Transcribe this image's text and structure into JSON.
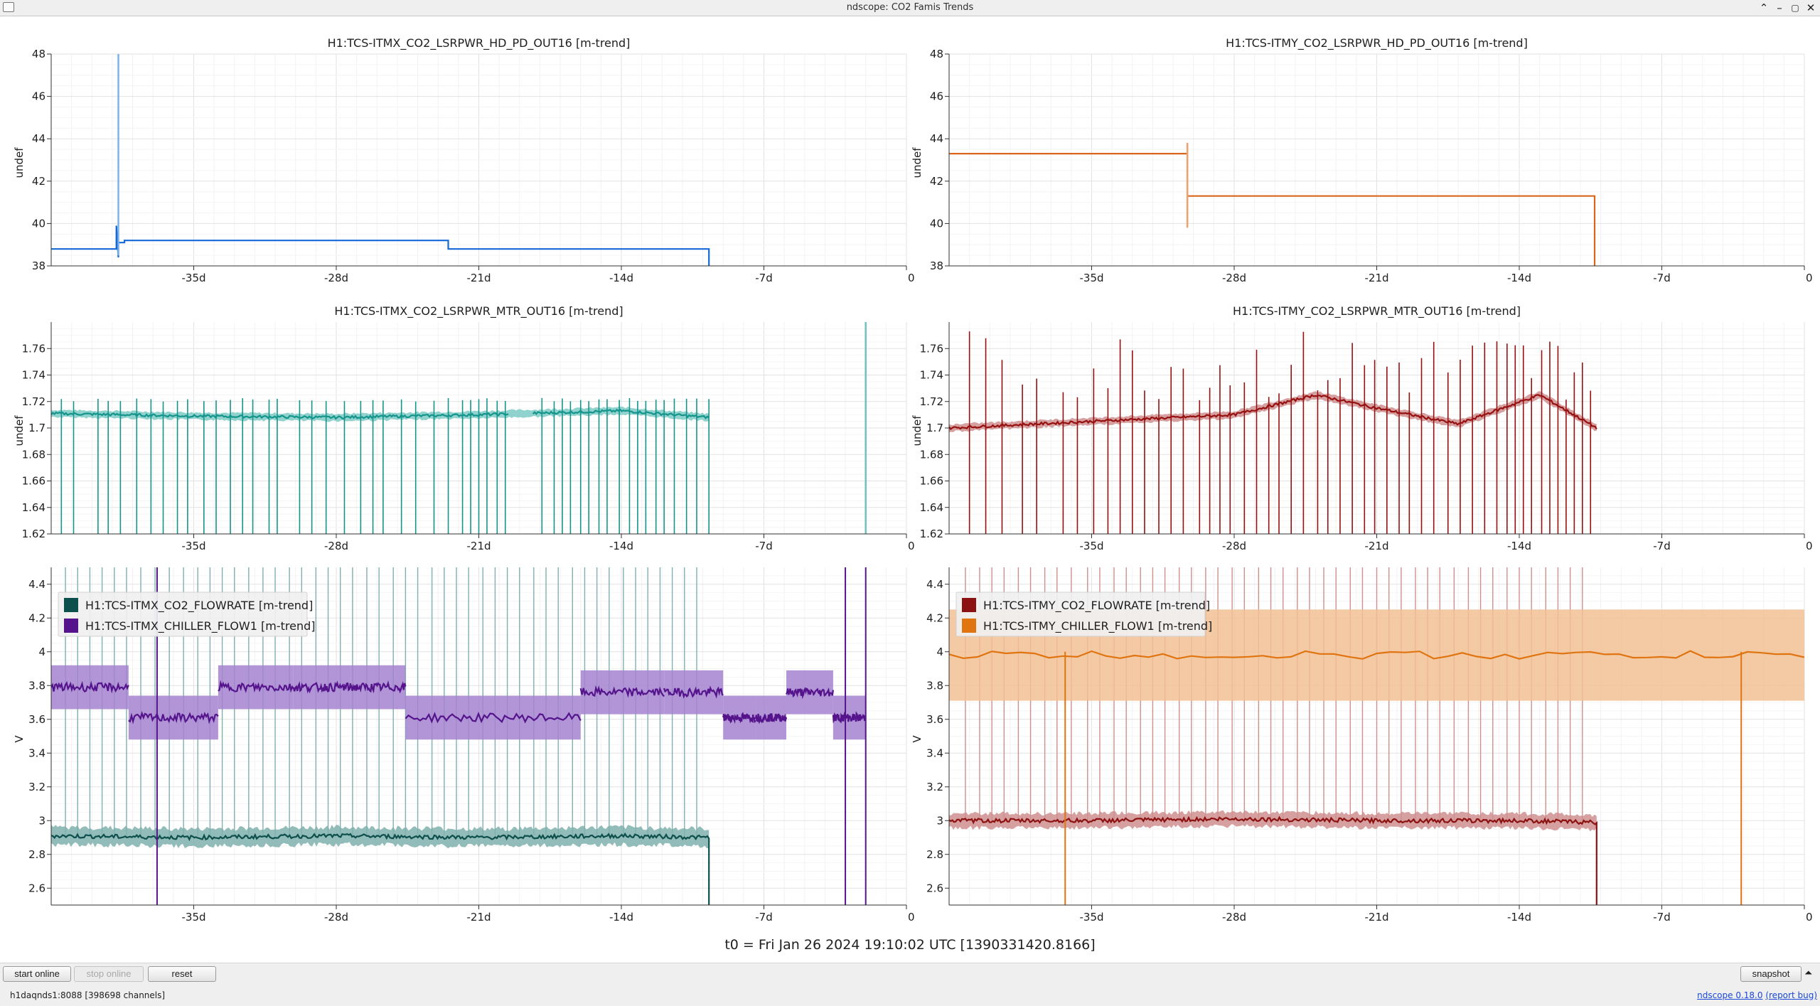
{
  "window": {
    "title": "ndscope: CO2 Famis Trends"
  },
  "x_ticks": [
    "-35d",
    "-28d",
    "-21d",
    "-14d",
    "-7d",
    "0"
  ],
  "t0_text": "t0 = Fri Jan 26 2024 19:10:02 UTC [1390331420.8166]",
  "toolbar": {
    "start_online": "start online",
    "stop_online": "stop online",
    "reset": "reset",
    "snapshot": "snapshot",
    "expand_glyph": "⏶"
  },
  "status": {
    "server": "h1daqnds1:8088 [398698 channels]",
    "version_link": "ndscope 0.18.0",
    "report_link": "(report bug)"
  },
  "chart_data": [
    {
      "type": "line",
      "id": "tl",
      "title": "H1:TCS-ITMX_CO2_LSRPWR_HD_PD_OUT16 [m-trend]",
      "ylabel": "undef",
      "xlabel": "",
      "xlim": [
        -42,
        0
      ],
      "ylim": [
        38,
        48
      ],
      "yticks": [
        38,
        40,
        42,
        44,
        46,
        48
      ],
      "legend": [],
      "series": [
        {
          "color": "#1668d6",
          "x": [
            -42,
            -38.8,
            -38.8,
            -38.7,
            -38.7,
            -38.4,
            -38.4,
            -22.5,
            -22.5,
            -9.7,
            -9.7
          ],
          "y": [
            38.8,
            38.8,
            39.9,
            38.4,
            39.1,
            39.1,
            39.2,
            39.2,
            38.8,
            38.8,
            38
          ],
          "spike": {
            "x": -38.7,
            "ymin": 38.5,
            "ymax": 48,
            "color": "#7bb2ea"
          }
        }
      ]
    },
    {
      "type": "line",
      "id": "tr",
      "title": "H1:TCS-ITMY_CO2_LSRPWR_HD_PD_OUT16 [m-trend]",
      "ylabel": "undef",
      "xlabel": "",
      "xlim": [
        -42,
        0
      ],
      "ylim": [
        38,
        48
      ],
      "yticks": [
        38,
        40,
        42,
        44,
        46,
        48
      ],
      "legend": [],
      "series": [
        {
          "color": "#d9661b",
          "x": [
            -42,
            -30.3,
            -30.3,
            -30.3,
            -30.3,
            -10.3,
            -10.3
          ],
          "y": [
            43.3,
            43.3,
            43.8,
            39.9,
            41.3,
            41.3,
            38
          ],
          "spike": {
            "x": -30.3,
            "ymin": 39.8,
            "ymax": 43.8,
            "color": "#eda271"
          }
        }
      ]
    },
    {
      "type": "line",
      "id": "ml",
      "title": "H1:TCS-ITMX_CO2_LSRPWR_MTR_OUT16 [m-trend]",
      "ylabel": "undef",
      "xlabel": "",
      "xlim": [
        -42,
        0
      ],
      "ylim": [
        1.62,
        1.78
      ],
      "yticks": [
        1.62,
        1.64,
        1.66,
        1.68,
        1.7,
        1.72,
        1.74,
        1.76
      ],
      "legend": [],
      "series": [
        {
          "color": "#14958c",
          "band": "#7ccac4",
          "x": [
            -42,
            -35,
            -28,
            -21,
            -14,
            -9.7
          ],
          "y": [
            1.711,
            1.709,
            1.708,
            1.71,
            1.713,
            1.708
          ],
          "gaps": [
            [
              -19.5,
              -18.3
            ]
          ],
          "drops": {
            "min": 1.62,
            "xs": [
              -41.5,
              -40.9,
              -39.7,
              -39.2,
              -38.6,
              -37.8,
              -37.1,
              -36.5,
              -35.8,
              -35.3,
              -34.5,
              -33.9,
              -33.2,
              -32.6,
              -32.1,
              -31.3,
              -30.9,
              -29.8,
              -29.2,
              -28.5,
              -27.6,
              -26.8,
              -26.2,
              -25.7,
              -24.8,
              -24.1,
              -23.2,
              -22.5,
              -21.8,
              -21.4,
              -21.0,
              -20.6,
              -20.1,
              -19.7,
              -17.9,
              -17.3,
              -16.9,
              -16.5,
              -16.0,
              -15.6,
              -15.1,
              -14.7,
              -14.1,
              -13.6,
              -13.2,
              -12.8,
              -12.3,
              -11.9,
              -11.4,
              -10.8,
              -10.3,
              -9.7
            ]
          },
          "spike": {
            "x": -2.0,
            "ymin": 1.62,
            "ymax": 1.78,
            "color": "#6fc3bd"
          }
        }
      ]
    },
    {
      "type": "line",
      "id": "mr",
      "title": "H1:TCS-ITMY_CO2_LSRPWR_MTR_OUT16 [m-trend]",
      "ylabel": "undef",
      "xlabel": "",
      "xlim": [
        -42,
        0
      ],
      "ylim": [
        1.62,
        1.78
      ],
      "yticks": [
        1.62,
        1.64,
        1.66,
        1.68,
        1.7,
        1.72,
        1.74,
        1.76
      ],
      "legend": [],
      "series": [
        {
          "color": "#961010",
          "band": "#cf8f8f",
          "x": [
            -42,
            -35,
            -28,
            -24,
            -21,
            -17,
            -13,
            -10.2
          ],
          "y": [
            1.7,
            1.705,
            1.71,
            1.725,
            1.715,
            1.703,
            1.725,
            1.7
          ],
          "gaps": [],
          "drops": {
            "min": 1.62,
            "xs": [
              -41.0,
              -40.2,
              -39.4,
              -38.4,
              -37.7,
              -36.4,
              -35.7,
              -34.9,
              -34.2,
              -33.6,
              -33.0,
              -32.4,
              -31.7,
              -31.1,
              -30.5,
              -29.7,
              -29.2,
              -28.7,
              -28.2,
              -27.5,
              -26.9,
              -26.3,
              -25.8,
              -25.2,
              -24.6,
              -23.9,
              -23.4,
              -22.8,
              -22.2,
              -21.6,
              -21.1,
              -20.5,
              -19.9,
              -19.4,
              -18.8,
              -18.2,
              -17.5,
              -16.9,
              -16.3,
              -15.7,
              -15.1,
              -14.6,
              -14.2,
              -13.8,
              -13.4,
              -12.9,
              -12.5,
              -12.1,
              -11.7,
              -11.3,
              -10.9,
              -10.5
            ]
          }
        }
      ]
    },
    {
      "type": "line",
      "id": "bl",
      "title": "",
      "ylabel": "V",
      "xlabel": "",
      "xlim": [
        -42,
        0
      ],
      "ylim": [
        2.5,
        4.5
      ],
      "yticks": [
        2.6,
        2.8,
        3,
        3.2,
        3.4,
        3.6,
        3.8,
        4,
        4.2,
        4.4
      ],
      "legend": [
        "H1:TCS-ITMX_CO2_FLOWRATE [m-trend]",
        "H1:TCS-ITMX_CHILLER_FLOW1 [m-trend]"
      ],
      "series": [
        {
          "name": "H1:TCS-ITMX_CO2_FLOWRATE [m-trend]",
          "color": "#0d4f4d",
          "band": "#7fb0ad",
          "x": [
            -42,
            -35,
            -28,
            -21,
            -14,
            -9.7
          ],
          "y": [
            2.91,
            2.9,
            2.91,
            2.9,
            2.91,
            2.9
          ],
          "bandwidth": 0.06,
          "end_drop": 2.5,
          "spikes": [
            -41.3,
            -40.7,
            -40.1,
            -39.5,
            -38.9,
            -38.3,
            -37.6,
            -36.9,
            -36.2,
            -35.5,
            -34.8,
            -34.2,
            -33.6,
            -33.0,
            -32.3,
            -31.6,
            -31.0,
            -30.3,
            -29.7,
            -29.0,
            -28.4,
            -27.8,
            -27.2,
            -26.5,
            -25.9,
            -25.2,
            -24.6,
            -24.0,
            -23.3,
            -22.7,
            -22.1,
            -21.5,
            -20.8,
            -20.2,
            -19.6,
            -19.0,
            -18.3,
            -17.7,
            -17.1,
            -16.4,
            -15.8,
            -15.2,
            -14.6,
            -13.9,
            -13.3,
            -12.7,
            -12.1,
            -11.5,
            -10.9,
            -10.3
          ],
          "spike_top": 4.5
        },
        {
          "name": "H1:TCS-ITMX_CHILLER_FLOW1 [m-trend]",
          "color": "#55148c",
          "band": "#a582d0",
          "steps": [
            [
              -42,
              -38.2,
              3.79
            ],
            [
              -38.2,
              -33.8,
              3.61
            ],
            [
              -33.8,
              -30.1,
              3.79
            ],
            [
              -30.1,
              -27.3,
              3.79
            ],
            [
              -27.3,
              -24.6,
              3.79
            ],
            [
              -24.6,
              -16.0,
              3.61
            ],
            [
              -16.0,
              -11.9,
              3.76
            ],
            [
              -11.9,
              -9.0,
              3.76
            ],
            [
              -9.0,
              -7.4,
              3.61
            ],
            [
              -7.4,
              -5.9,
              3.61
            ],
            [
              -5.9,
              -3.6,
              3.76
            ],
            [
              -3.6,
              -2.0,
              3.61
            ]
          ],
          "bandwidth": 0.13,
          "drops": [
            [
              -36.8,
              2.5
            ],
            [
              -3.0,
              2.5
            ],
            [
              -2.0,
              2.5
            ]
          ],
          "drop_top": 4.5
        }
      ]
    },
    {
      "type": "line",
      "id": "br",
      "title": "",
      "ylabel": "V",
      "xlabel": "",
      "xlim": [
        -42,
        0
      ],
      "ylim": [
        2.5,
        4.5
      ],
      "yticks": [
        2.6,
        2.8,
        3,
        3.2,
        3.4,
        3.6,
        3.8,
        4,
        4.2,
        4.4
      ],
      "legend": [
        "H1:TCS-ITMY_CO2_FLOWRATE [m-trend]",
        "H1:TCS-ITMY_CHILLER_FLOW1 [m-trend]"
      ],
      "series": [
        {
          "name": "H1:TCS-ITMY_CO2_FLOWRATE [m-trend]",
          "color": "#8c1111",
          "band": "#cf8f8f",
          "x": [
            -42,
            -35,
            -28,
            -21,
            -14,
            -10.2
          ],
          "y": [
            3.0,
            3.0,
            3.01,
            3.0,
            3.0,
            2.99
          ],
          "bandwidth": 0.05,
          "end_drop": 2.5,
          "spikes": [
            -41.2,
            -40.5,
            -39.9,
            -39.3,
            -38.6,
            -38.0,
            -37.3,
            -36.7,
            -36.0,
            -35.2,
            -34.6,
            -33.9,
            -33.3,
            -32.6,
            -32.0,
            -31.4,
            -30.7,
            -30.1,
            -29.4,
            -28.8,
            -28.1,
            -27.5,
            -26.8,
            -26.2,
            -25.6,
            -24.9,
            -24.3,
            -23.6,
            -23.0,
            -22.3,
            -21.7,
            -21.0,
            -20.4,
            -19.8,
            -19.1,
            -18.5,
            -17.9,
            -17.2,
            -16.5,
            -15.9,
            -15.3,
            -14.6,
            -14.0,
            -13.4,
            -12.7,
            -12.1,
            -11.5,
            -10.9
          ],
          "spike_top": 4.5
        },
        {
          "name": "H1:TCS-ITMY_CHILLER_FLOW1 [m-trend]",
          "color": "#df7410",
          "band": "#f2c194",
          "steps": [
            [
              -42,
              0,
              3.98
            ]
          ],
          "bandwidth": 0.27,
          "drops": [
            [
              -36.3,
              2.5
            ],
            [
              -3.1,
              2.5
            ]
          ],
          "drop_top": 4.0
        }
      ]
    }
  ]
}
